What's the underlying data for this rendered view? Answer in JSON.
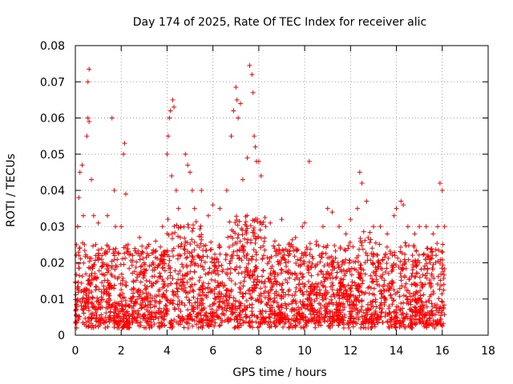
{
  "chart_data": {
    "type": "scatter",
    "title": "Day 174 of 2025, Rate Of TEC Index for receiver alic",
    "xlabel": "GPS time / hours",
    "ylabel": "ROTI / TECUs",
    "xlim": [
      0,
      18
    ],
    "ylim": [
      0,
      0.08
    ],
    "xticks": [
      0,
      2,
      4,
      6,
      8,
      10,
      12,
      14,
      16,
      18
    ],
    "xtick_labels": [
      "0",
      "2",
      "4",
      "6",
      "8",
      "10",
      "12",
      "14",
      "16",
      "18"
    ],
    "yticks": [
      0,
      0.01,
      0.02,
      0.03,
      0.04,
      0.05,
      0.06,
      0.07,
      0.08
    ],
    "ytick_labels": [
      "0",
      "0.01",
      "0.02",
      "0.03",
      "0.04",
      "0.05",
      "0.06",
      "0.07",
      "0.08"
    ],
    "grid": true,
    "marker": "+",
    "color": "#ff0000",
    "data_range_x": [
      0,
      16.1
    ],
    "series": [
      {
        "name": "ROTI",
        "x": [
          0.05,
          0.1,
          0.15,
          0.2,
          0.3,
          0.35,
          0.4,
          0.5,
          0.55,
          0.55,
          0.6,
          0.6,
          0.7,
          0.8,
          1.0,
          1.2,
          1.4,
          1.6,
          1.7,
          1.75,
          2.0,
          2.1,
          2.15,
          2.2,
          2.3,
          2.5,
          2.8,
          3.0,
          3.2,
          3.5,
          3.8,
          4.0,
          4.05,
          4.1,
          4.15,
          4.2,
          4.25,
          4.3,
          4.4,
          4.5,
          4.6,
          4.8,
          4.9,
          5.0,
          5.1,
          5.2,
          5.5,
          5.8,
          6.0,
          6.3,
          6.6,
          6.8,
          6.9,
          7.0,
          7.05,
          7.1,
          7.2,
          7.3,
          7.5,
          7.6,
          7.7,
          7.75,
          7.8,
          7.85,
          7.9,
          8.0,
          8.1,
          8.3,
          8.5,
          8.7,
          9.0,
          9.3,
          9.6,
          9.9,
          10.0,
          10.2,
          10.5,
          10.8,
          11.0,
          11.2,
          11.5,
          11.8,
          12.0,
          12.3,
          12.4,
          12.5,
          12.7,
          13.0,
          13.3,
          13.6,
          13.9,
          14.0,
          14.2,
          14.3,
          14.5,
          14.8,
          15.0,
          15.3,
          15.6,
          15.8,
          15.9,
          16.0,
          16.1
        ],
        "y": [
          0.025,
          0.03,
          0.038,
          0.045,
          0.047,
          0.033,
          0.025,
          0.055,
          0.06,
          0.07,
          0.0735,
          0.059,
          0.043,
          0.033,
          0.031,
          0.02,
          0.033,
          0.06,
          0.04,
          0.03,
          0.03,
          0.05,
          0.053,
          0.039,
          0.025,
          0.022,
          0.027,
          0.02,
          0.022,
          0.026,
          0.03,
          0.05,
          0.055,
          0.06,
          0.062,
          0.044,
          0.065,
          0.063,
          0.04,
          0.035,
          0.03,
          0.05,
          0.047,
          0.045,
          0.04,
          0.035,
          0.04,
          0.033,
          0.036,
          0.035,
          0.04,
          0.055,
          0.062,
          0.0685,
          0.065,
          0.06,
          0.064,
          0.043,
          0.049,
          0.0745,
          0.072,
          0.067,
          0.055,
          0.052,
          0.048,
          0.048,
          0.044,
          0.03,
          0.031,
          0.026,
          0.032,
          0.022,
          0.027,
          0.03,
          0.031,
          0.048,
          0.025,
          0.03,
          0.035,
          0.034,
          0.03,
          0.028,
          0.032,
          0.035,
          0.045,
          0.042,
          0.037,
          0.03,
          0.03,
          0.028,
          0.033,
          0.035,
          0.037,
          0.036,
          0.03,
          0.028,
          0.03,
          0.03,
          0.028,
          0.03,
          0.042,
          0.04,
          0.03
        ]
      }
    ],
    "baseline_band": {
      "y_low": 0.003,
      "y_typical": 0.012,
      "y_high": 0.025,
      "x_start": 0,
      "x_end": 16.1
    }
  }
}
